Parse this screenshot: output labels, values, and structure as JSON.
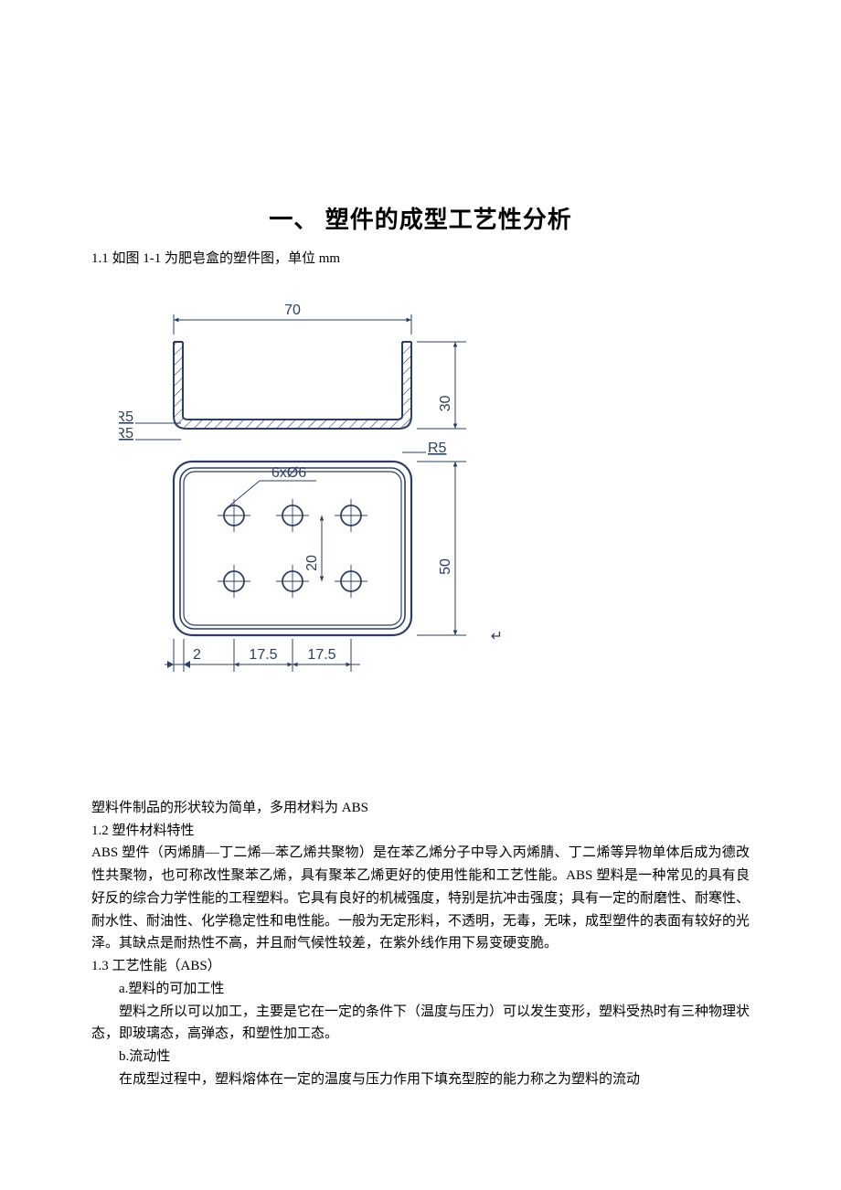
{
  "title": "一、  塑件的成型工艺性分析",
  "s11": "1.1 如图 1-1 为肥皂盒的塑件图，单位 mm",
  "shape_note": "塑料件制品的形状较为简单，多用材料为 ABS",
  "s12_head": "1.2 塑件材料特性",
  "s12_body": "  ABS 塑件（丙烯腈—丁二烯—苯乙烯共聚物）是在苯乙烯分子中导入丙烯腈、丁二烯等异物单体后成为德改性共聚物，也可称改性聚苯乙烯，具有聚苯乙烯更好的使用性能和工艺性能。ABS 塑料是一种常见的具有良好反的综合力学性能的工程塑料。它具有良好的机械强度，特别是抗冲击强度；具有一定的耐磨性、耐寒性、耐水性、耐油性、化学稳定性和电性能。一般为无定形料，不透明，无毒，无味，成型塑件的表面有较好的光泽。其缺点是耐热性不高，并且耐气候性较差，在紫外线作用下易变硬变脆。",
  "s13_head": "1.3 工艺性能（ABS）",
  "s13_a": "a.塑料的可加工性",
  "s13_a_body": "塑料之所以可以加工，主要是它在一定的条件下（温度与压力）可以发生变形，塑料受热时有三种物理状态，即玻璃态，高弹态，和塑性加工态。",
  "s13_b": "b.流动性",
  "s13_b_body": "在成型过程中，塑料熔体在一定的温度与压力作用下填充型腔的能力称之为塑料的流动",
  "diagram": {
    "colors": {
      "stroke": "#2b3f66",
      "fill_bg": "#ffffff",
      "hatch": "#2b3f66",
      "text": "#2b3f66"
    },
    "top": {
      "dim_top_label": "70",
      "dim_right_label": "30",
      "r_left_upper": "R5",
      "r_left_lower": "R5",
      "r_right": "R5"
    },
    "bottom": {
      "hole_label": "6xØ6",
      "dim_v_label": "20",
      "dim_right_label": "50",
      "dims_bottom": [
        "2",
        "17.5",
        "17.5"
      ]
    }
  }
}
